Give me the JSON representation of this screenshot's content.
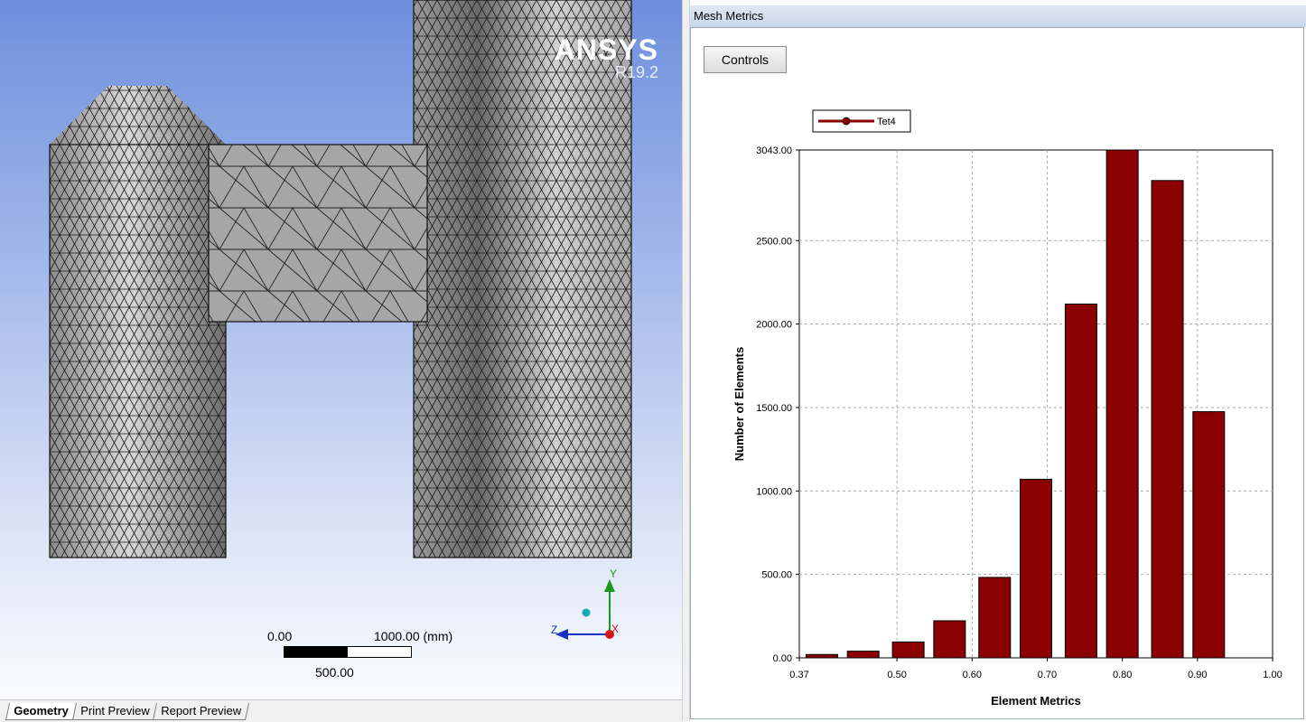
{
  "viewport": {
    "logo_brand": "ANSYS",
    "logo_version": "R19.2",
    "scale": {
      "start": "0.00",
      "end": "1000.00 (mm)",
      "mid": "500.00"
    },
    "triad": {
      "y": "Y",
      "z": "Z",
      "x": "X"
    },
    "tabs": [
      "Geometry",
      "Print Preview",
      "Report Preview"
    ]
  },
  "panel": {
    "title": "Mesh Metrics",
    "controls_label": "Controls"
  },
  "chart_data": {
    "type": "bar",
    "series": [
      {
        "name": "Tet4",
        "color": "#8b0000",
        "values": [
          20,
          40,
          95,
          222,
          482,
          1070,
          2120,
          3043,
          2860,
          1475
        ]
      }
    ],
    "bin_centers": [
      0.4,
      0.455,
      0.515,
      0.57,
      0.63,
      0.685,
      0.745,
      0.8,
      0.86,
      0.915
    ],
    "xlabel": "Element Metrics",
    "ylabel": "Number of Elements",
    "xlim": [
      0.37,
      1.0
    ],
    "ylim": [
      0,
      3043
    ],
    "x_ticks": [
      "0.37",
      "0.50",
      "0.60",
      "0.70",
      "0.80",
      "0.90",
      "1.00"
    ],
    "x_tick_values": [
      0.37,
      0.5,
      0.6,
      0.7,
      0.8,
      0.9,
      1.0
    ],
    "y_ticks": [
      "0.00",
      "500.00",
      "1000.00",
      "1500.00",
      "2000.00",
      "2500.00",
      "3043.00"
    ],
    "y_tick_values": [
      0,
      500,
      1000,
      1500,
      2000,
      2500,
      3043
    ],
    "grid": true,
    "legend": "top-left"
  }
}
